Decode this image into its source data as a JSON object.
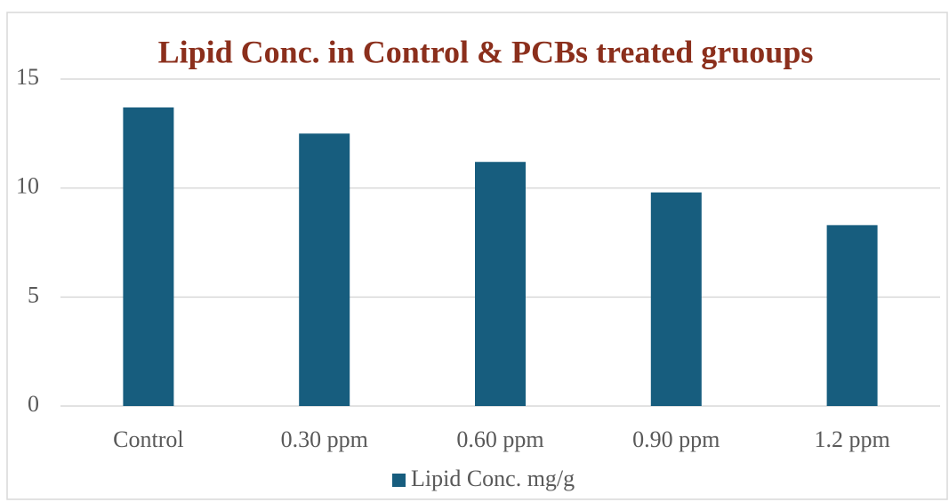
{
  "chart_data": {
    "type": "bar",
    "title": "Lipid Conc. in Control & PCBs treated gruoups",
    "categories": [
      "Control",
      "0.30 ppm",
      "0.60 ppm",
      "0.90 ppm",
      "1.2 ppm"
    ],
    "series": [
      {
        "name": "Lipid Conc. mg/g",
        "color": "#175d7e",
        "values": [
          13.7,
          12.5,
          11.2,
          9.8,
          8.3
        ]
      }
    ],
    "ylim": [
      0,
      15
    ],
    "yticks": [
      0,
      5,
      10,
      15
    ],
    "grid": true,
    "legend": "bottom"
  }
}
